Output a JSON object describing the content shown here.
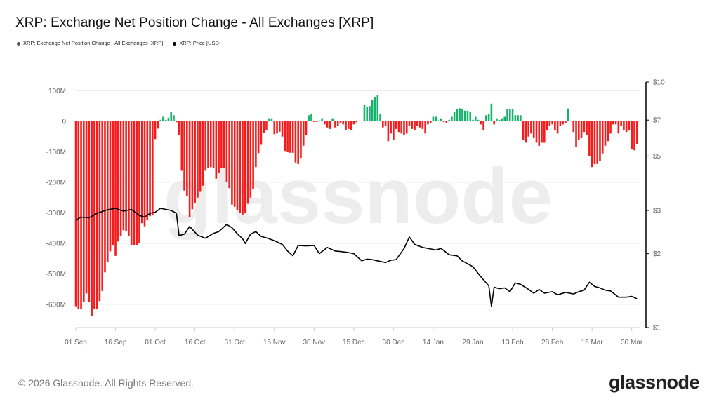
{
  "title": "XRP: Exchange Net Position Change - All Exchanges [XRP]",
  "legend": [
    {
      "label": "XRP: Exchange Net Position Change - All Exchanges [XRP]",
      "color": "#555555"
    },
    {
      "label": "XRP: Price [USD]",
      "color": "#000000"
    }
  ],
  "footer": "© 2026 Glassnode. All Rights Reserved.",
  "logo": "glassnode",
  "watermark": "glassnode",
  "chart_data": {
    "type": "bar+line",
    "title": "XRP: Exchange Net Position Change - All Exchanges [XRP]",
    "x_tick_labels": [
      "01 Sep",
      "16 Sep",
      "01 Oct",
      "16 Oct",
      "31 Oct",
      "15 Nov",
      "30 Nov",
      "15 Dec",
      "30 Dec",
      "14 Jan",
      "29 Jan",
      "13 Feb",
      "28 Feb",
      "15 Mar",
      "30 Mar"
    ],
    "left_axis": {
      "ticks": [
        100,
        0,
        -100,
        -200,
        -300,
        -400,
        -500,
        -600
      ],
      "tick_labels": [
        "100M",
        "0",
        "-100M",
        "-200M",
        "-300M",
        "-400M",
        "-500M",
        "-600M"
      ],
      "ylim": [
        -680,
        130
      ],
      "unit": "M XRP"
    },
    "right_axis": {
      "scale": "log",
      "ticks": [
        10,
        7,
        5,
        3,
        2,
        1
      ],
      "tick_labels": [
        "$10",
        "$7",
        "$5",
        "$3",
        "$2",
        "$1"
      ],
      "ylim": [
        1,
        10
      ]
    },
    "grid": true,
    "legend_position": "top-left",
    "colors": {
      "positive": "#16b26a",
      "negative": "#f41c1c",
      "price": "#000000"
    },
    "bars": {
      "name": "XRP: Exchange Net Position Change - All Exchanges [XRP]",
      "x_start": "01 Sep",
      "interval": "daily",
      "values": [
        -606,
        -615,
        -614,
        -591,
        -564,
        -591,
        -638,
        -615,
        -614,
        -589,
        -556,
        -495,
        -460,
        -426,
        -405,
        -441,
        -394,
        -376,
        -357,
        -361,
        -376,
        -405,
        -405,
        -407,
        -398,
        -334,
        -344,
        -323,
        -311,
        -307,
        -58,
        -24,
        5,
        15,
        5,
        12,
        30,
        20,
        -3,
        -45,
        -162,
        -227,
        -246,
        -315,
        -288,
        -269,
        -250,
        -231,
        -211,
        -162,
        -154,
        -150,
        -154,
        -188,
        -169,
        -154,
        -154,
        -200,
        -219,
        -273,
        -280,
        -290,
        -300,
        -307,
        -299,
        -270,
        -250,
        -223,
        -150,
        -104,
        -77,
        -39,
        -28,
        10,
        10,
        -42,
        -40,
        -34,
        -50,
        -97,
        -100,
        -103,
        -103,
        -135,
        -140,
        -120,
        -80,
        -45,
        20,
        25,
        -2,
        -2,
        3,
        10,
        -10,
        -20,
        -25,
        10,
        -20,
        -15,
        -5,
        -10,
        -28,
        -25,
        -28,
        -10,
        -3,
        2,
        2,
        55,
        48,
        50,
        70,
        80,
        85,
        25,
        -20,
        -15,
        -65,
        -40,
        -60,
        -25,
        -35,
        -40,
        -45,
        -40,
        -15,
        -25,
        -30,
        -15,
        -20,
        -25,
        -40,
        -10,
        -5,
        15,
        15,
        3,
        10,
        -2,
        -5,
        5,
        15,
        30,
        40,
        43,
        40,
        35,
        35,
        30,
        5,
        15,
        5,
        -10,
        -30,
        20,
        25,
        58,
        -10,
        10,
        5,
        10,
        15,
        40,
        40,
        40,
        20,
        20,
        20,
        -60,
        -70,
        -50,
        -40,
        -55,
        -70,
        -80,
        -70,
        -70,
        -30,
        -15,
        -10,
        -30,
        -40,
        -15,
        -10,
        -5,
        42,
        2,
        -35,
        -85,
        -60,
        -55,
        -35,
        -45,
        -115,
        -150,
        -140,
        -140,
        -130,
        -105,
        -80,
        -65,
        -40,
        -10,
        -10,
        -40,
        -15,
        -30,
        -35,
        -30,
        -90,
        -95,
        -75
      ]
    },
    "price": {
      "name": "XRP: Price [USD]",
      "points": [
        [
          "Sep 01",
          2.74
        ],
        [
          "Sep 03",
          2.82
        ],
        [
          "Sep 06",
          2.8
        ],
        [
          "Sep 09",
          2.92
        ],
        [
          "Sep 13",
          3.02
        ],
        [
          "Sep 16",
          3.06
        ],
        [
          "Sep 19",
          2.98
        ],
        [
          "Sep 22",
          3.03
        ],
        [
          "Sep 25",
          2.86
        ],
        [
          "Sep 27",
          2.82
        ],
        [
          "Sep 29",
          2.92
        ],
        [
          "Oct 01",
          2.95
        ],
        [
          "Oct 03",
          3.06
        ],
        [
          "Oct 07",
          3.0
        ],
        [
          "Oct 09",
          2.92
        ],
        [
          "Oct 10",
          2.37
        ],
        [
          "Oct 12",
          2.4
        ],
        [
          "Oct 14",
          2.58
        ],
        [
          "Oct 17",
          2.38
        ],
        [
          "Oct 20",
          2.31
        ],
        [
          "Oct 23",
          2.42
        ],
        [
          "Oct 25",
          2.46
        ],
        [
          "Oct 28",
          2.63
        ],
        [
          "Oct 30",
          2.55
        ],
        [
          "Nov 01",
          2.41
        ],
        [
          "Nov 03",
          2.3
        ],
        [
          "Nov 04",
          2.2
        ],
        [
          "Nov 06",
          2.4
        ],
        [
          "Nov 08",
          2.46
        ],
        [
          "Nov 10",
          2.35
        ],
        [
          "Nov 12",
          2.32
        ],
        [
          "Nov 15",
          2.26
        ],
        [
          "Nov 18",
          2.18
        ],
        [
          "Nov 20",
          2.05
        ],
        [
          "Nov 22",
          1.96
        ],
        [
          "Nov 24",
          2.16
        ],
        [
          "Nov 27",
          2.15
        ],
        [
          "Nov 30",
          2.16
        ],
        [
          "Dec 02",
          2.0
        ],
        [
          "Dec 05",
          2.12
        ],
        [
          "Dec 08",
          2.05
        ],
        [
          "Dec 10",
          2.04
        ],
        [
          "Dec 13",
          2.02
        ],
        [
          "Dec 15",
          2.0
        ],
        [
          "Dec 18",
          1.87
        ],
        [
          "Dec 20",
          1.9
        ],
        [
          "Dec 22",
          1.89
        ],
        [
          "Dec 25",
          1.86
        ],
        [
          "Dec 27",
          1.84
        ],
        [
          "Dec 29",
          1.88
        ],
        [
          "Dec 31",
          1.89
        ],
        [
          "Jan 03",
          2.1
        ],
        [
          "Jan 05",
          2.34
        ],
        [
          "Jan 07",
          2.18
        ],
        [
          "Jan 10",
          2.12
        ],
        [
          "Jan 13",
          2.09
        ],
        [
          "Jan 15",
          2.07
        ],
        [
          "Jan 17",
          2.1
        ],
        [
          "Jan 20",
          1.98
        ],
        [
          "Jan 23",
          1.96
        ],
        [
          "Jan 25",
          1.87
        ],
        [
          "Jan 29",
          1.77
        ],
        [
          "Feb 01",
          1.61
        ],
        [
          "Feb 04",
          1.48
        ],
        [
          "Feb 05",
          1.22
        ],
        [
          "Feb 06",
          1.46
        ],
        [
          "Feb 08",
          1.44
        ],
        [
          "Feb 10",
          1.45
        ],
        [
          "Feb 12",
          1.4
        ],
        [
          "Feb 14",
          1.52
        ],
        [
          "Feb 16",
          1.5
        ],
        [
          "Feb 19",
          1.43
        ],
        [
          "Feb 21",
          1.38
        ],
        [
          "Feb 23",
          1.43
        ],
        [
          "Feb 25",
          1.38
        ],
        [
          "Feb 28",
          1.4
        ],
        [
          "Mar 02",
          1.36
        ],
        [
          "Mar 05",
          1.39
        ],
        [
          "Mar 08",
          1.37
        ],
        [
          "Mar 10",
          1.4
        ],
        [
          "Mar 12",
          1.42
        ],
        [
          "Mar 14",
          1.53
        ],
        [
          "Mar 16",
          1.47
        ],
        [
          "Mar 18",
          1.45
        ],
        [
          "Mar 20",
          1.42
        ],
        [
          "Mar 22",
          1.41
        ],
        [
          "Mar 25",
          1.33
        ],
        [
          "Mar 28",
          1.33
        ],
        [
          "Mar 30",
          1.34
        ],
        [
          "Apr 01",
          1.31
        ]
      ]
    }
  }
}
